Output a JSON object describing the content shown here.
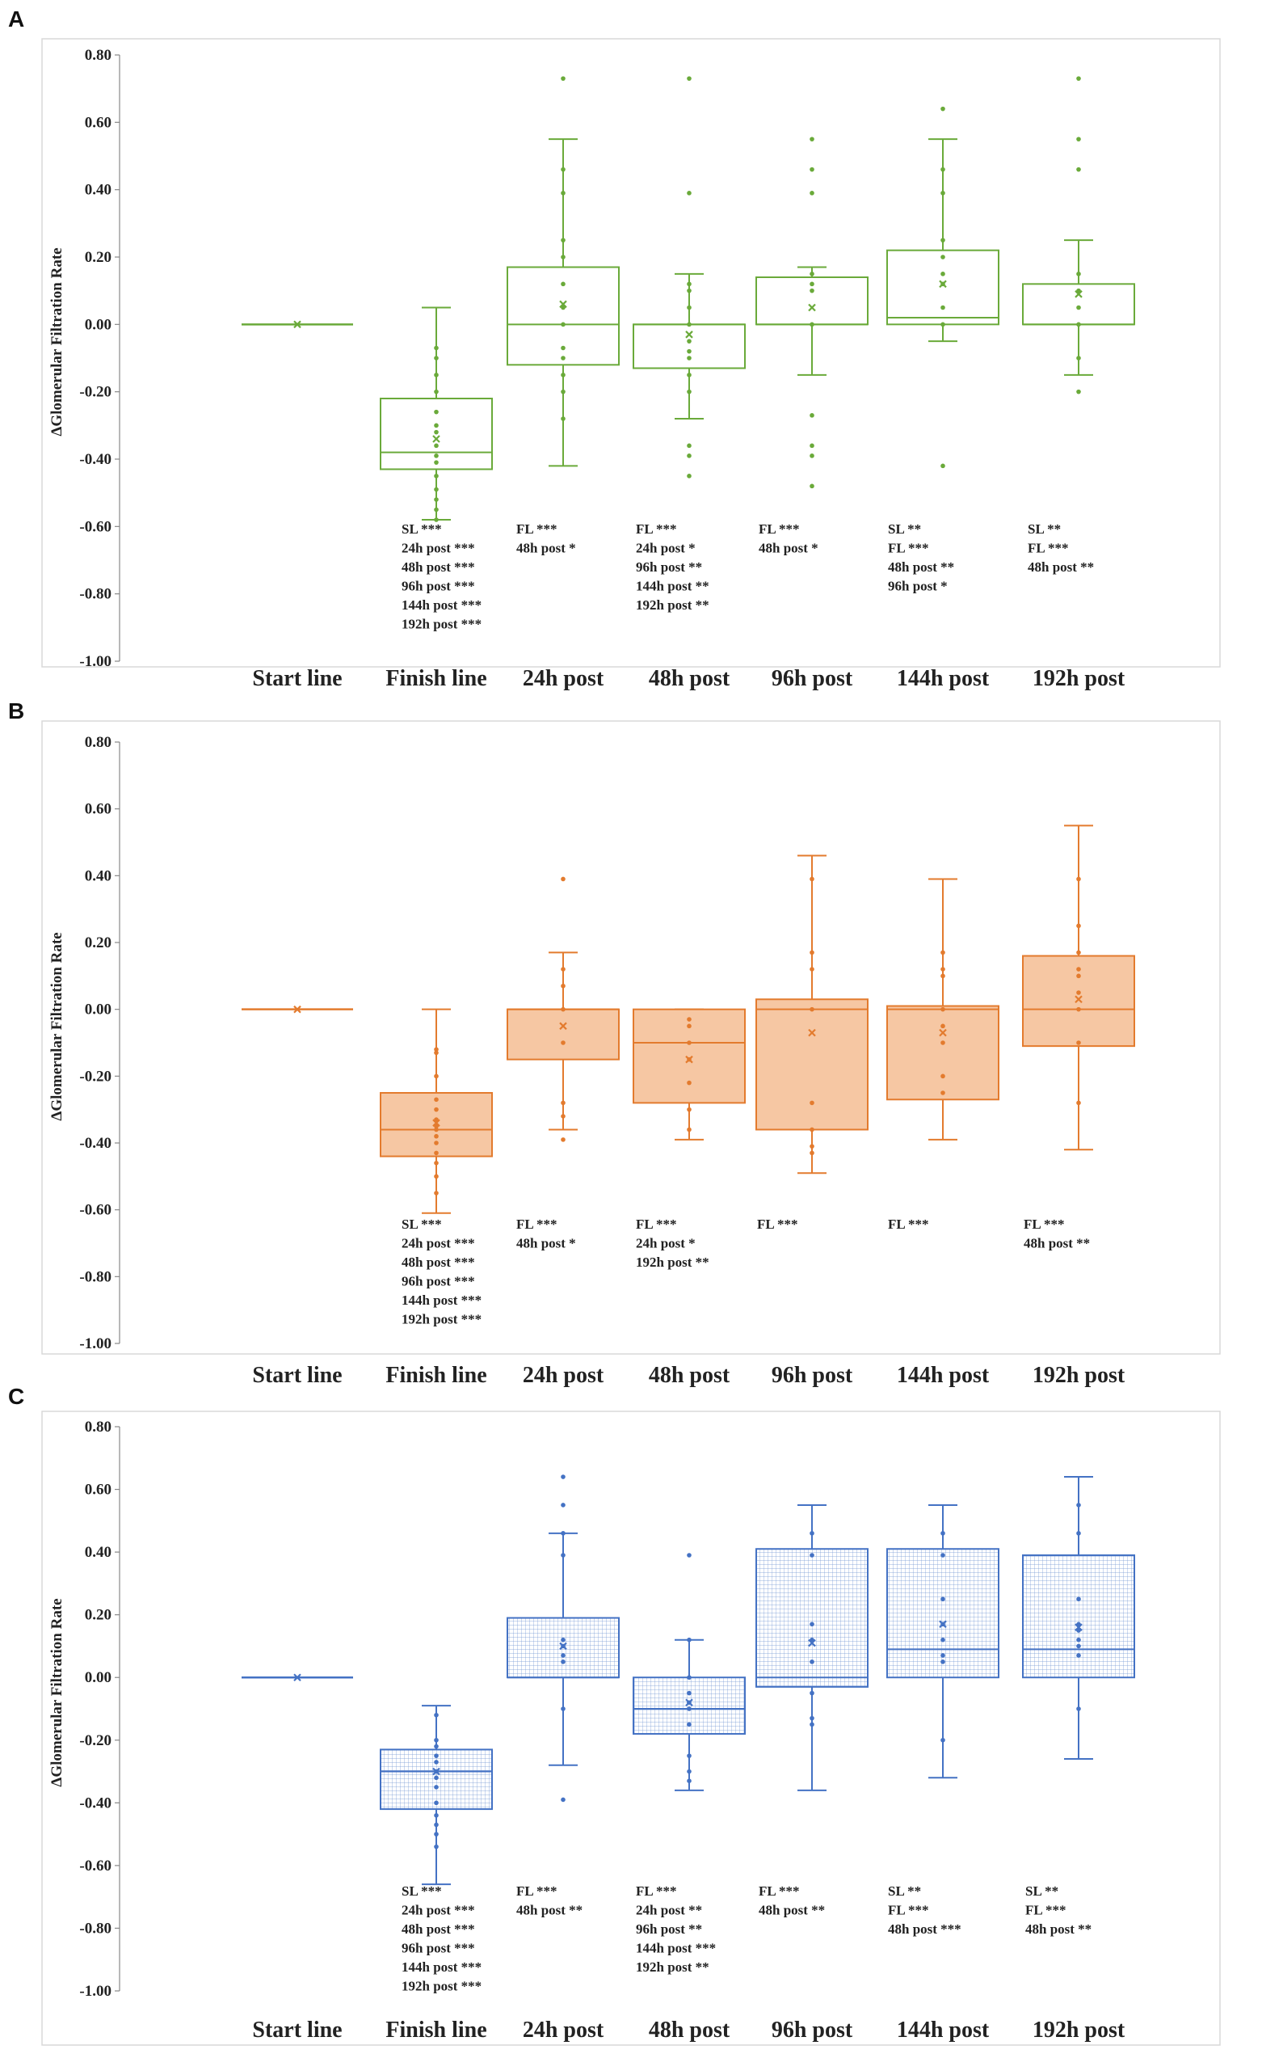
{
  "chart_data": [
    {
      "panel": "A",
      "type": "box",
      "title": "",
      "ylabel": "ΔGlomerular  Filtration Rate",
      "xlabel": "",
      "ylim": [
        -1.0,
        0.8
      ],
      "yticks": [
        "0.80",
        "0.60",
        "0.40",
        "0.20",
        "0.00",
        "-0.20",
        "-0.40",
        "-0.60",
        "-0.80",
        "-1.00"
      ],
      "ytick_values": [
        0.8,
        0.6,
        0.4,
        0.2,
        0.0,
        -0.2,
        -0.4,
        -0.6,
        -0.8,
        -1.0
      ],
      "style": {
        "stroke": "#6aaa3a",
        "fill": "none",
        "pattern": "none"
      },
      "categories": [
        "Start line",
        "Finish line",
        "24h post",
        "48h post",
        "96h post",
        "144h post",
        "192h post"
      ],
      "boxes": [
        {
          "min": 0,
          "q1": 0,
          "median": 0,
          "q3": 0,
          "max": 0,
          "mean": 0,
          "points": []
        },
        {
          "min": -0.58,
          "q1": -0.43,
          "median": -0.38,
          "q3": -0.22,
          "max": 0.05,
          "mean": -0.34,
          "points": [
            -0.07,
            -0.1,
            -0.15,
            -0.2,
            -0.26,
            -0.3,
            -0.32,
            -0.36,
            -0.39,
            -0.41,
            -0.45,
            -0.49,
            -0.52,
            -0.55,
            -0.58
          ]
        },
        {
          "min": -0.42,
          "q1": -0.12,
          "median": 0,
          "q3": 0.17,
          "max": 0.55,
          "mean": 0.06,
          "points": [
            0.73,
            0.46,
            0.39,
            0.25,
            0.2,
            0.12,
            0.05,
            0.0,
            -0.07,
            -0.1,
            -0.15,
            -0.2,
            -0.28
          ]
        },
        {
          "min": -0.28,
          "q1": -0.13,
          "median": 0,
          "q3": 0,
          "max": 0.15,
          "mean": -0.03,
          "points": [
            0.73,
            0.39,
            0.12,
            0.1,
            0.05,
            0.0,
            -0.05,
            -0.08,
            -0.1,
            -0.15,
            -0.2,
            -0.36,
            -0.39,
            -0.45
          ]
        },
        {
          "min": -0.15,
          "q1": 0,
          "median": 0,
          "q3": 0.14,
          "max": 0.17,
          "mean": 0.05,
          "points": [
            0.55,
            0.46,
            0.39,
            0.15,
            0.12,
            0.1,
            0.0,
            -0.27,
            -0.36,
            -0.39,
            -0.48
          ]
        },
        {
          "min": -0.05,
          "q1": 0,
          "median": 0.02,
          "q3": 0.22,
          "max": 0.55,
          "mean": 0.12,
          "points": [
            0.64,
            0.46,
            0.39,
            0.25,
            0.2,
            0.15,
            0.12,
            0.05,
            0.0,
            -0.42
          ]
        },
        {
          "min": -0.15,
          "q1": 0,
          "median": 0,
          "q3": 0.12,
          "max": 0.25,
          "mean": 0.09,
          "points": [
            0.73,
            0.55,
            0.46,
            0.15,
            0.1,
            0.05,
            0.0,
            -0.1,
            -0.2
          ]
        }
      ],
      "annotations": [
        [],
        [
          "SL ***",
          "24h post ***",
          "48h post ***",
          "96h post ***",
          "144h post ***",
          "192h post ***"
        ],
        [
          "FL ***",
          "48h post *"
        ],
        [
          "FL ***",
          "24h post *",
          "96h post **",
          "144h post **",
          "192h post **"
        ],
        [
          "FL ***",
          "48h post *"
        ],
        [
          "SL **",
          "FL ***",
          "48h post **",
          "96h post *"
        ],
        [
          "SL **",
          "FL ***",
          "48h post **"
        ]
      ]
    },
    {
      "panel": "B",
      "type": "box",
      "title": "",
      "ylabel": "ΔGlomerular  Filtration Rate",
      "xlabel": "",
      "ylim": [
        -1.0,
        0.8
      ],
      "yticks": [
        "0.80",
        "0.60",
        "0.40",
        "0.20",
        "0.00",
        "-0.20",
        "-0.40",
        "-0.60",
        "-0.80",
        "-1.00"
      ],
      "ytick_values": [
        0.8,
        0.6,
        0.4,
        0.2,
        0.0,
        -0.2,
        -0.4,
        -0.6,
        -0.8,
        -1.0
      ],
      "style": {
        "stroke": "#e37b2e",
        "fill": "#f6c7a3",
        "pattern": "none"
      },
      "categories": [
        "Start line",
        "Finish line",
        "24h post",
        "48h post",
        "96h post",
        "144h post",
        "192h post"
      ],
      "boxes": [
        {
          "min": 0,
          "q1": 0,
          "median": 0,
          "q3": 0,
          "max": 0,
          "mean": 0,
          "points": []
        },
        {
          "min": -0.61,
          "q1": -0.44,
          "median": -0.36,
          "q3": -0.25,
          "max": 0,
          "mean": -0.34,
          "points": [
            -0.12,
            -0.13,
            -0.2,
            -0.27,
            -0.3,
            -0.33,
            -0.35,
            -0.36,
            -0.38,
            -0.4,
            -0.43,
            -0.46,
            -0.5,
            -0.55
          ]
        },
        {
          "min": -0.36,
          "q1": -0.15,
          "median": 0,
          "q3": 0,
          "max": 0.17,
          "mean": -0.05,
          "points": [
            0.39,
            0.12,
            0.07,
            0.0,
            -0.1,
            -0.28,
            -0.32,
            -0.39
          ]
        },
        {
          "min": -0.39,
          "q1": -0.28,
          "median": -0.1,
          "q3": 0,
          "max": 0,
          "mean": -0.15,
          "points": [
            -0.03,
            -0.05,
            -0.1,
            -0.15,
            -0.22,
            -0.3,
            -0.36
          ]
        },
        {
          "min": -0.49,
          "q1": -0.36,
          "median": 0,
          "q3": 0.03,
          "max": 0.46,
          "mean": -0.07,
          "points": [
            0.39,
            0.17,
            0.12,
            0.0,
            -0.28,
            -0.36,
            -0.41,
            -0.43
          ]
        },
        {
          "min": -0.39,
          "q1": -0.27,
          "median": 0,
          "q3": 0.01,
          "max": 0.39,
          "mean": -0.07,
          "points": [
            0.17,
            0.12,
            0.1,
            0.0,
            -0.05,
            -0.1,
            -0.2,
            -0.25
          ]
        },
        {
          "min": -0.42,
          "q1": -0.11,
          "median": 0,
          "q3": 0.16,
          "max": 0.55,
          "mean": 0.03,
          "points": [
            0.39,
            0.25,
            0.17,
            0.12,
            0.1,
            0.05,
            0.0,
            -0.1,
            -0.28
          ]
        }
      ],
      "annotations": [
        [],
        [
          "SL ***",
          "24h post ***",
          "48h post ***",
          "96h post ***",
          "144h post ***",
          "192h post ***"
        ],
        [
          "FL ***",
          "48h post *"
        ],
        [
          "FL ***",
          "24h post *",
          "192h post **"
        ],
        [
          "FL ***"
        ],
        [
          "FL ***"
        ],
        [
          "FL ***",
          "48h post **"
        ]
      ]
    },
    {
      "panel": "C",
      "type": "box",
      "title": "",
      "ylabel": "ΔGlomerular  Filtration Rate",
      "xlabel": "",
      "ylim": [
        -1.0,
        0.8
      ],
      "yticks": [
        "0.80",
        "0.60",
        "0.40",
        "0.20",
        "0.00",
        "-0.20",
        "-0.40",
        "-0.60",
        "-0.80",
        "-1.00"
      ],
      "ytick_values": [
        0.8,
        0.6,
        0.4,
        0.2,
        0.0,
        -0.2,
        -0.4,
        -0.6,
        -0.8,
        -1.0
      ],
      "style": {
        "stroke": "#4472c4",
        "fill": "none",
        "pattern": "grid"
      },
      "categories": [
        "Start line",
        "Finish line",
        "24h post",
        "48h post",
        "96h post",
        "144h post",
        "192h post"
      ],
      "boxes": [
        {
          "min": 0,
          "q1": 0,
          "median": 0,
          "q3": 0,
          "max": 0,
          "mean": 0,
          "points": []
        },
        {
          "min": -0.66,
          "q1": -0.42,
          "median": -0.3,
          "q3": -0.23,
          "max": -0.09,
          "mean": -0.3,
          "points": [
            -0.12,
            -0.2,
            -0.22,
            -0.25,
            -0.27,
            -0.3,
            -0.32,
            -0.35,
            -0.4,
            -0.44,
            -0.47,
            -0.5,
            -0.54
          ]
        },
        {
          "min": -0.28,
          "q1": 0,
          "median": 0,
          "q3": 0.19,
          "max": 0.46,
          "mean": 0.1,
          "points": [
            0.64,
            0.55,
            0.46,
            0.39,
            0.12,
            0.1,
            0.07,
            0.05,
            -0.1,
            -0.39
          ]
        },
        {
          "min": -0.36,
          "q1": -0.18,
          "median": -0.1,
          "q3": 0,
          "max": 0.12,
          "mean": -0.08,
          "points": [
            0.39,
            0.12,
            0.0,
            -0.05,
            -0.08,
            -0.1,
            -0.15,
            -0.25,
            -0.3,
            -0.33
          ]
        },
        {
          "min": -0.36,
          "q1": -0.03,
          "median": 0,
          "q3": 0.41,
          "max": 0.55,
          "mean": 0.11,
          "points": [
            0.46,
            0.39,
            0.17,
            0.12,
            0.05,
            -0.05,
            -0.13,
            -0.15
          ]
        },
        {
          "min": -0.32,
          "q1": 0,
          "median": 0.09,
          "q3": 0.41,
          "max": 0.55,
          "mean": 0.17,
          "points": [
            0.46,
            0.39,
            0.25,
            0.17,
            0.12,
            0.07,
            0.05,
            -0.2
          ]
        },
        {
          "min": -0.26,
          "q1": 0,
          "median": 0.09,
          "q3": 0.39,
          "max": 0.64,
          "mean": 0.16,
          "points": [
            0.55,
            0.46,
            0.25,
            0.17,
            0.15,
            0.12,
            0.1,
            0.07,
            -0.1
          ]
        }
      ],
      "annotations": [
        [],
        [
          "SL ***",
          "24h post ***",
          "48h post ***",
          "96h post ***",
          "144h post ***",
          "192h post ***"
        ],
        [
          "FL ***",
          "48h post **"
        ],
        [
          "FL ***",
          "24h post **",
          "96h post **",
          "144h post ***",
          "192h post **"
        ],
        [
          "FL ***",
          "48h post **"
        ],
        [
          "SL **",
          "FL ***",
          "48h post ***"
        ],
        [
          "SL **",
          "FL ***",
          "48h post **"
        ]
      ]
    }
  ]
}
